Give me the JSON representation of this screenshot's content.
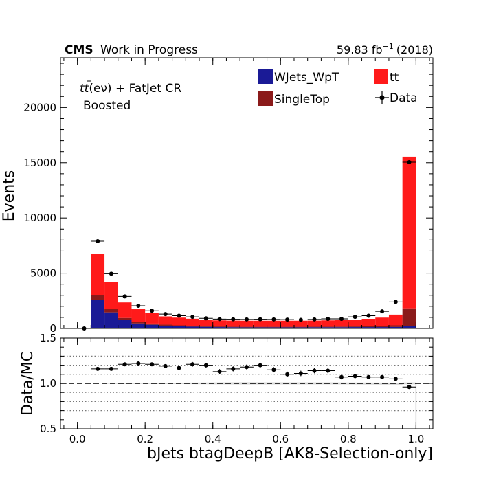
{
  "header": {
    "cms_label": "CMS",
    "wip_label": "Work in Progress",
    "lumi_label": "59.83 fb",
    "lumi_exp": "−1",
    "year_label": "(2018)"
  },
  "region": {
    "line1_prefix": "tt",
    "line1_decay": "(eν) + FatJet CR",
    "line2": "Boosted"
  },
  "legend": {
    "wjets": "WJets_WpT",
    "singletop": "SingleTop",
    "tt": "tt",
    "data": "Data"
  },
  "axes": {
    "ylabel_main": "Events",
    "ylabel_ratio": "Data/MC",
    "xlabel": "bJets btagDeepB [AK8-Selection-only]"
  },
  "colors": {
    "wjets": "#1a1a96",
    "singletop": "#8b1a1a",
    "tt": "#ff1a1a",
    "data": "#000000"
  },
  "chart_data": {
    "type": "bar",
    "stacked": true,
    "main": {
      "xlim": [
        -0.05,
        1.05
      ],
      "ylim": [
        0,
        24500
      ],
      "yticks": [
        0,
        5000,
        10000,
        15000,
        20000
      ],
      "xticks": [
        0.0,
        0.2,
        0.4,
        0.6,
        0.8,
        1.0
      ]
    },
    "bin_edges": [
      0.0,
      0.04,
      0.08,
      0.12,
      0.16,
      0.2,
      0.24,
      0.28,
      0.32,
      0.36,
      0.4,
      0.44,
      0.48,
      0.52,
      0.56,
      0.6,
      0.64,
      0.68,
      0.72,
      0.76,
      0.8,
      0.84,
      0.88,
      0.92,
      0.96,
      1.0
    ],
    "series": [
      {
        "name": "WJets_WpT",
        "key": "wjets",
        "values": [
          0,
          2550,
          1450,
          750,
          450,
          330,
          250,
          200,
          160,
          140,
          120,
          110,
          100,
          100,
          100,
          100,
          100,
          110,
          110,
          110,
          120,
          120,
          120,
          130,
          220
        ]
      },
      {
        "name": "SingleTop",
        "key": "singletop",
        "values": [
          0,
          450,
          300,
          200,
          140,
          110,
          90,
          80,
          70,
          60,
          60,
          50,
          50,
          50,
          50,
          50,
          50,
          50,
          50,
          60,
          60,
          70,
          80,
          150,
          1600
        ]
      },
      {
        "name": "tt",
        "key": "tt",
        "values": [
          0,
          3750,
          2450,
          1400,
          1150,
          950,
          750,
          700,
          650,
          600,
          550,
          550,
          550,
          550,
          550,
          550,
          550,
          550,
          570,
          590,
          620,
          680,
          780,
          970,
          13730
        ]
      }
    ],
    "data": {
      "name": "Data",
      "x": [
        0.02,
        0.06,
        0.1,
        0.14,
        0.18,
        0.22,
        0.26,
        0.3,
        0.34,
        0.38,
        0.42,
        0.46,
        0.5,
        0.54,
        0.58,
        0.62,
        0.66,
        0.7,
        0.74,
        0.78,
        0.82,
        0.86,
        0.9,
        0.94,
        0.98
      ],
      "y": [
        0,
        7900,
        4950,
        2900,
        2050,
        1600,
        1300,
        1150,
        1050,
        920,
        850,
        830,
        820,
        830,
        820,
        800,
        780,
        820,
        870,
        870,
        1050,
        1150,
        1550,
        2400,
        15050
      ]
    },
    "ratio": {
      "ylim": [
        0.5,
        1.5
      ],
      "yticks": [
        0.5,
        1.0,
        1.5
      ],
      "gridlines": [
        0.7,
        0.8,
        0.9,
        1.1,
        1.2,
        1.3
      ],
      "reference": 1.0,
      "x": [
        0.06,
        0.1,
        0.14,
        0.18,
        0.22,
        0.26,
        0.3,
        0.34,
        0.38,
        0.42,
        0.46,
        0.5,
        0.54,
        0.58,
        0.62,
        0.66,
        0.7,
        0.74,
        0.78,
        0.82,
        0.86,
        0.9,
        0.94,
        0.98
      ],
      "values": [
        1.16,
        1.16,
        1.21,
        1.22,
        1.21,
        1.19,
        1.17,
        1.21,
        1.2,
        1.13,
        1.16,
        1.18,
        1.2,
        1.15,
        1.1,
        1.11,
        1.14,
        1.14,
        1.07,
        1.08,
        1.07,
        1.07,
        1.05,
        0.96
      ],
      "errors": [
        0.01,
        0.012,
        0.015,
        0.018,
        0.02,
        0.022,
        0.024,
        0.026,
        0.027,
        0.028,
        0.028,
        0.028,
        0.028,
        0.029,
        0.03,
        0.03,
        0.029,
        0.028,
        0.026,
        0.024,
        0.022,
        0.019,
        0.016,
        0.008
      ]
    }
  }
}
